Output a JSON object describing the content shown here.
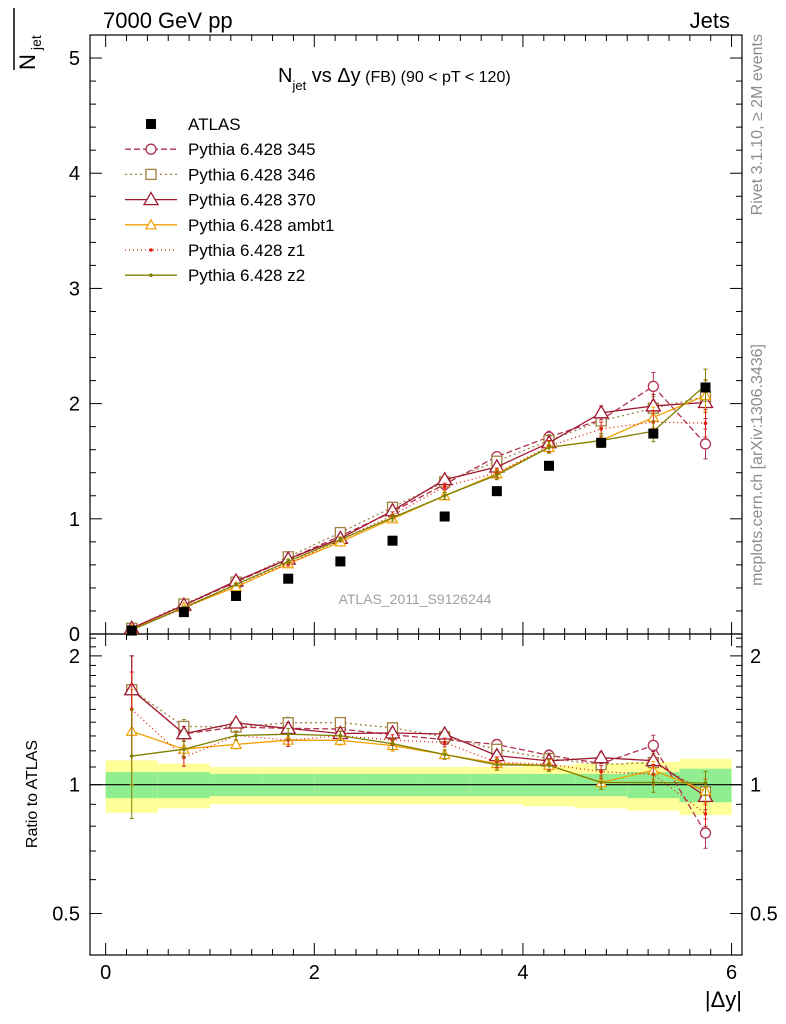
{
  "header": {
    "left": "7000 GeV pp",
    "right": "Jets"
  },
  "side": {
    "rivet": "Rivet 3.1.10, ≥ 2M events",
    "mcplots": "mcplots.cern.ch [arXiv:1306.3436]"
  },
  "chart_data": {
    "type": "line",
    "title": {
      "main": "N",
      "sub": "jet",
      "rest": " vs Δy",
      "small": " (FB)",
      "tail": " (90 < pT < 120)"
    },
    "watermark": "ATLAS_2011_S9126244",
    "ylabel_main": {
      "main": "N",
      "sub": "jet"
    },
    "ylabel_ratio": "Ratio to ATLAS",
    "xlabel": "|Δy|",
    "xlim": [
      -0.15,
      6.1
    ],
    "ylim_main": [
      0,
      5.2
    ],
    "ylim_ratio": [
      0.4,
      2.25
    ],
    "x_ticks": [
      0,
      2,
      4,
      6
    ],
    "y_ticks_main": [
      0,
      1,
      2,
      3,
      4,
      5
    ],
    "y_ticks_ratio": [
      0.5,
      1,
      2
    ],
    "x": [
      0.25,
      0.75,
      1.25,
      1.75,
      2.25,
      2.75,
      3.25,
      3.75,
      4.25,
      4.75,
      5.25,
      5.75
    ],
    "bin_edges": [
      0,
      0.5,
      1,
      1.5,
      2,
      2.5,
      3,
      3.5,
      4,
      4.5,
      5,
      5.5,
      6
    ],
    "data": {
      "name": "ATLAS",
      "values": [
        0.03,
        0.19,
        0.33,
        0.48,
        0.63,
        0.81,
        1.02,
        1.24,
        1.46,
        1.66,
        1.74,
        2.14
      ],
      "band_inner": [
        0.07,
        0.07,
        0.06,
        0.06,
        0.06,
        0.06,
        0.06,
        0.06,
        0.06,
        0.06,
        0.07,
        0.09
      ],
      "band_outer": [
        0.14,
        0.12,
        0.1,
        0.1,
        0.1,
        0.1,
        0.1,
        0.1,
        0.11,
        0.12,
        0.13,
        0.15
      ]
    },
    "series": [
      {
        "name": "Pythia 6.428 345",
        "color": "#b03050",
        "dash": "6,3",
        "marker": "circle",
        "values": [
          0.05,
          0.25,
          0.45,
          0.65,
          0.85,
          1.06,
          1.3,
          1.54,
          1.71,
          1.86,
          2.15,
          1.65
        ],
        "errors": [
          0.01,
          0.01,
          0.01,
          0.02,
          0.02,
          0.03,
          0.03,
          0.04,
          0.05,
          0.07,
          0.12,
          0.13
        ]
      },
      {
        "name": "Pythia 6.428 346",
        "color": "#a08040",
        "dash": "2,3",
        "marker": "square",
        "values": [
          0.05,
          0.26,
          0.45,
          0.67,
          0.88,
          1.1,
          1.32,
          1.5,
          1.68,
          1.85,
          1.96,
          2.06
        ],
        "errors": [
          0.01,
          0.01,
          0.01,
          0.02,
          0.02,
          0.03,
          0.03,
          0.04,
          0.05,
          0.06,
          0.1,
          0.14
        ]
      },
      {
        "name": "Pythia 6.428 370",
        "color": "#a01830",
        "dash": "",
        "marker": "triangle",
        "values": [
          0.05,
          0.25,
          0.46,
          0.65,
          0.83,
          1.07,
          1.34,
          1.45,
          1.66,
          1.92,
          1.98,
          2.01
        ],
        "errors": [
          0.01,
          0.01,
          0.01,
          0.02,
          0.02,
          0.03,
          0.03,
          0.04,
          0.05,
          0.06,
          0.1,
          0.14
        ]
      },
      {
        "name": "Pythia 6.428 ambt1",
        "color": "#f0a000",
        "dash": "",
        "marker": "triangle-small",
        "values": [
          0.04,
          0.23,
          0.41,
          0.61,
          0.8,
          1.0,
          1.2,
          1.39,
          1.62,
          1.68,
          1.88,
          2.07
        ],
        "errors": [
          0.01,
          0.01,
          0.01,
          0.02,
          0.02,
          0.03,
          0.03,
          0.04,
          0.05,
          0.06,
          0.09,
          0.14
        ]
      },
      {
        "name": "Pythia 6.428 z1",
        "color": "#e02010",
        "dash": "1,3",
        "marker": "dot",
        "values": [
          0.045,
          0.22,
          0.43,
          0.61,
          0.82,
          1.03,
          1.28,
          1.4,
          1.63,
          1.78,
          1.84,
          1.83
        ],
        "errors": [
          0.01,
          0.01,
          0.01,
          0.02,
          0.02,
          0.03,
          0.03,
          0.04,
          0.05,
          0.06,
          0.1,
          0.12
        ]
      },
      {
        "name": "Pythia 6.428 z2",
        "color": "#808000",
        "dash": "",
        "marker": "dot",
        "values": [
          0.035,
          0.23,
          0.43,
          0.63,
          0.82,
          1.01,
          1.2,
          1.38,
          1.62,
          1.68,
          1.76,
          2.16
        ],
        "errors": [
          0.01,
          0.01,
          0.01,
          0.02,
          0.02,
          0.03,
          0.03,
          0.04,
          0.05,
          0.06,
          0.09,
          0.14
        ]
      }
    ]
  }
}
